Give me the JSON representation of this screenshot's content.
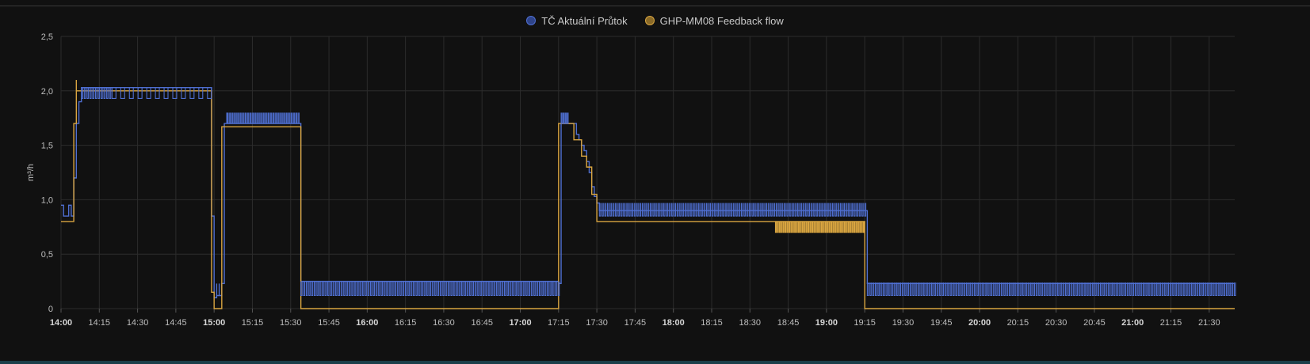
{
  "chart_data": {
    "type": "line",
    "line_style": "step",
    "title": "",
    "xlabel": "",
    "ylabel": "m³/h",
    "ylim": [
      0,
      2.5
    ],
    "xlim": [
      "14:00",
      "21:40"
    ],
    "grid": true,
    "legend_position": "top-center",
    "y_ticks": [
      "0",
      "0,5",
      "1,0",
      "1,5",
      "2,0",
      "2,5"
    ],
    "x_ticks": [
      {
        "t": "14:00",
        "label": "14:00",
        "major": true
      },
      {
        "t": "14:15",
        "label": "14:15",
        "major": false
      },
      {
        "t": "14:30",
        "label": "14:30",
        "major": false
      },
      {
        "t": "14:45",
        "label": "14:45",
        "major": false
      },
      {
        "t": "15:00",
        "label": "15:00",
        "major": true
      },
      {
        "t": "15:15",
        "label": "15:15",
        "major": false
      },
      {
        "t": "15:30",
        "label": "15:30",
        "major": false
      },
      {
        "t": "15:45",
        "label": "15:45",
        "major": false
      },
      {
        "t": "16:00",
        "label": "16:00",
        "major": true
      },
      {
        "t": "16:15",
        "label": "16:15",
        "major": false
      },
      {
        "t": "16:30",
        "label": "16:30",
        "major": false
      },
      {
        "t": "16:45",
        "label": "16:45",
        "major": false
      },
      {
        "t": "17:00",
        "label": "17:00",
        "major": true
      },
      {
        "t": "17:15",
        "label": "17:15",
        "major": false
      },
      {
        "t": "17:30",
        "label": "17:30",
        "major": false
      },
      {
        "t": "17:45",
        "label": "17:45",
        "major": false
      },
      {
        "t": "18:00",
        "label": "18:00",
        "major": true
      },
      {
        "t": "18:15",
        "label": "18:15",
        "major": false
      },
      {
        "t": "18:30",
        "label": "18:30",
        "major": false
      },
      {
        "t": "18:45",
        "label": "18:45",
        "major": false
      },
      {
        "t": "19:00",
        "label": "19:00",
        "major": true
      },
      {
        "t": "19:15",
        "label": "19:15",
        "major": false
      },
      {
        "t": "19:30",
        "label": "19:30",
        "major": false
      },
      {
        "t": "19:45",
        "label": "19:45",
        "major": false
      },
      {
        "t": "20:00",
        "label": "20:00",
        "major": true
      },
      {
        "t": "20:15",
        "label": "20:15",
        "major": false
      },
      {
        "t": "20:30",
        "label": "20:30",
        "major": false
      },
      {
        "t": "20:45",
        "label": "20:45",
        "major": false
      },
      {
        "t": "21:00",
        "label": "21:00",
        "major": true
      },
      {
        "t": "21:15",
        "label": "21:15",
        "major": false
      },
      {
        "t": "21:30",
        "label": "21:30",
        "major": false
      }
    ],
    "series": [
      {
        "name": "TČ Aktuální Průtok",
        "color": "#4f6fd1",
        "points": [
          [
            "14:00",
            0.95
          ],
          [
            "14:01",
            0.85
          ],
          [
            "14:03",
            0.95
          ],
          [
            "14:04",
            0.85
          ],
          [
            "14:05",
            0.95
          ],
          [
            "14:05",
            1.2
          ],
          [
            "14:06",
            1.7
          ],
          [
            "14:07",
            1.9
          ],
          [
            "14:08",
            2.03
          ],
          [
            "14:38",
            2.03
          ],
          [
            "14:38",
            2.03
          ],
          [
            "14:58",
            2.03
          ],
          [
            "14:59",
            0.85
          ],
          [
            "15:00",
            0.1
          ],
          [
            "15:01",
            0.23
          ],
          [
            "15:01",
            0.12
          ],
          [
            "15:02",
            0.23
          ],
          [
            "15:02",
            0.12
          ],
          [
            "15:03",
            0.23
          ],
          [
            "15:04",
            1.7
          ],
          [
            "15:05",
            1.8
          ],
          [
            "15:05",
            1.7
          ],
          [
            "15:33",
            1.7
          ],
          [
            "15:34",
            0.25
          ],
          [
            "17:15",
            0.23
          ],
          [
            "17:16",
            1.7
          ],
          [
            "17:20",
            1.7
          ],
          [
            "17:22",
            1.6
          ],
          [
            "17:23",
            1.55
          ],
          [
            "17:24",
            1.5
          ],
          [
            "17:25",
            1.45
          ],
          [
            "17:26",
            1.35
          ],
          [
            "17:27",
            1.25
          ],
          [
            "17:28",
            1.12
          ],
          [
            "17:29",
            1.03
          ],
          [
            "17:30",
            0.97
          ],
          [
            "17:31",
            0.9
          ],
          [
            "19:15",
            0.9
          ],
          [
            "19:16",
            0.23
          ],
          [
            "21:40",
            0.23
          ]
        ]
      },
      {
        "name": "GHP-MM08 Feedback flow",
        "color": "#d9a540",
        "points": [
          [
            "14:00",
            0.8
          ],
          [
            "14:05",
            0.8
          ],
          [
            "14:05",
            1.7
          ],
          [
            "14:06",
            2.1
          ],
          [
            "14:06",
            2.0
          ],
          [
            "14:58",
            2.0
          ],
          [
            "14:59",
            0.15
          ],
          [
            "15:00",
            0.0
          ],
          [
            "15:03",
            0.0
          ],
          [
            "15:03",
            1.67
          ],
          [
            "15:34",
            1.67
          ],
          [
            "15:34",
            0.0
          ],
          [
            "17:15",
            0.0
          ],
          [
            "17:15",
            1.7
          ],
          [
            "17:20",
            1.7
          ],
          [
            "17:21",
            1.55
          ],
          [
            "17:24",
            1.4
          ],
          [
            "17:26",
            1.3
          ],
          [
            "17:28",
            1.05
          ],
          [
            "17:30",
            0.8
          ],
          [
            "18:40",
            0.8
          ],
          [
            "19:15",
            0.8
          ],
          [
            "19:15",
            0.0
          ],
          [
            "21:40",
            0.0
          ]
        ]
      }
    ]
  }
}
